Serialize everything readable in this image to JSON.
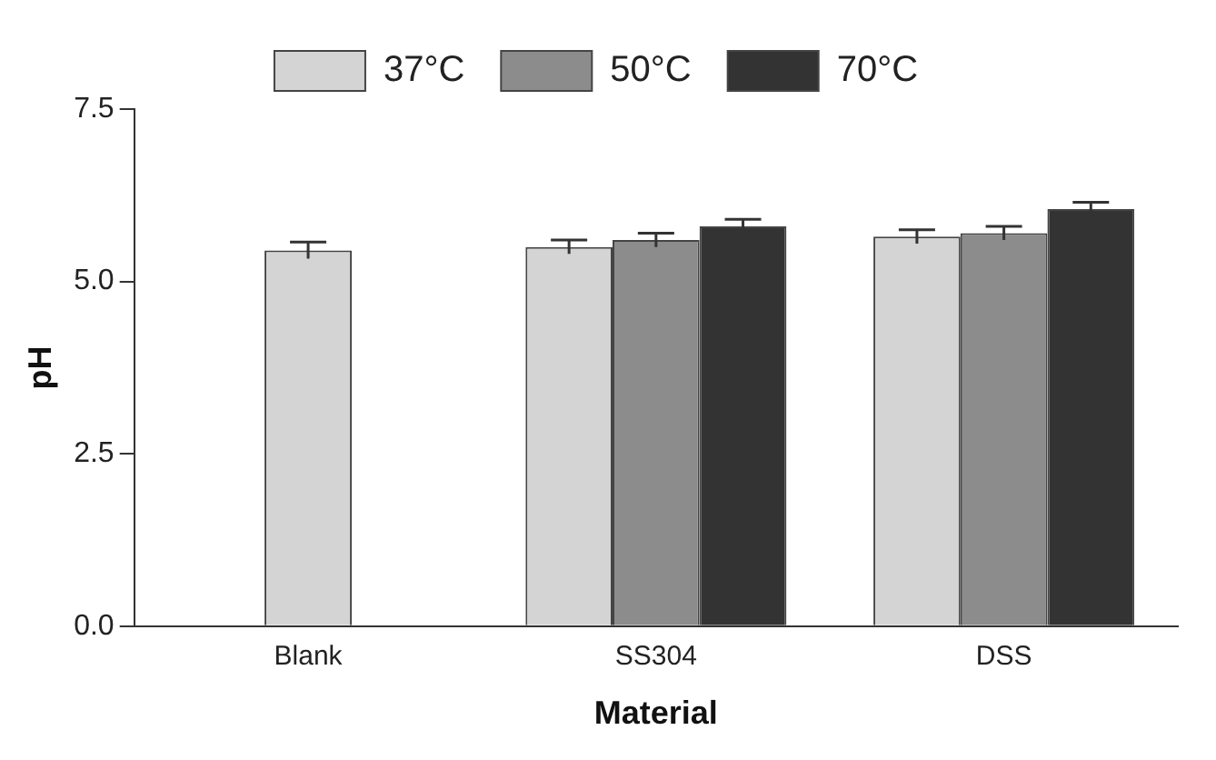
{
  "chart_data": {
    "type": "bar",
    "xlabel": "Material",
    "ylabel": "pH",
    "categories": [
      "Blank",
      "SS304",
      "DSS"
    ],
    "series": [
      {
        "name": "37°C",
        "color": "#d4d4d4",
        "values": [
          5.45,
          5.5,
          5.65
        ],
        "errors": [
          0.12,
          0.1,
          0.1
        ]
      },
      {
        "name": "50°C",
        "color": "#8c8c8c",
        "values": [
          null,
          5.6,
          5.7
        ],
        "errors": [
          null,
          0.1,
          0.1
        ]
      },
      {
        "name": "70°C",
        "color": "#333333",
        "values": [
          null,
          5.8,
          6.05
        ],
        "errors": [
          null,
          0.1,
          0.1
        ]
      }
    ],
    "ylim": [
      0,
      7.5
    ],
    "yticks": [
      {
        "value": 0,
        "label": "0.0"
      },
      2.5,
      {
        "value": 5,
        "label": "5.0"
      },
      7.5
    ],
    "grid": false,
    "legend": "top"
  }
}
